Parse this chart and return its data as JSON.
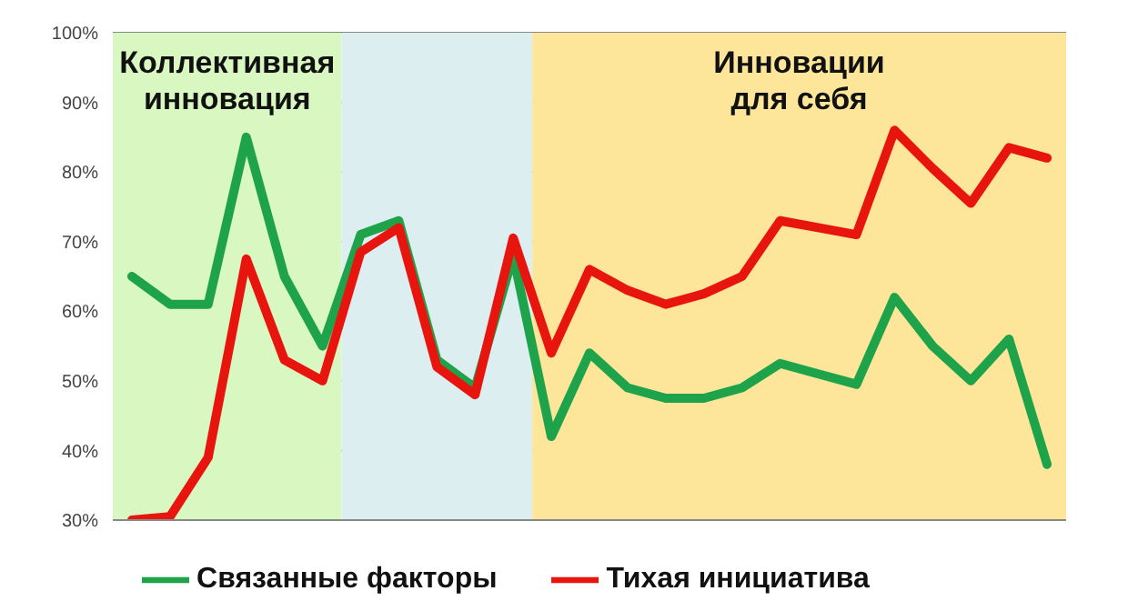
{
  "chart_data": {
    "type": "line",
    "categories": [
      null,
      null,
      null,
      null,
      null,
      null,
      null,
      null,
      null,
      null,
      null,
      null,
      null,
      null,
      null,
      null,
      null,
      null,
      null,
      null,
      null,
      null,
      null,
      null,
      null
    ],
    "ylim": [
      30,
      100
    ],
    "yticks": [
      {
        "value": 30,
        "label": "30%"
      },
      {
        "value": 40,
        "label": "40%"
      },
      {
        "value": 50,
        "label": "50%"
      },
      {
        "value": 60,
        "label": "60%"
      },
      {
        "value": 70,
        "label": "70%"
      },
      {
        "value": 80,
        "label": "80%"
      },
      {
        "value": 90,
        "label": "90%"
      },
      {
        "value": 100,
        "label": "100%"
      }
    ],
    "grid": "y",
    "legend": "bottom",
    "marker": "none",
    "line_style": "solid",
    "series": [
      {
        "name": "Связанные факторы",
        "color": "#1fa34a",
        "values": [
          65,
          61,
          61,
          85,
          65,
          55,
          71,
          73,
          53,
          49,
          68,
          42,
          54,
          49,
          47.5,
          47.5,
          49,
          52.5,
          51,
          49.5,
          62,
          55,
          50,
          56,
          38
        ]
      },
      {
        "name": "Тихая инициатива",
        "color": "#e8140e",
        "values": [
          30,
          30.5,
          39,
          67.5,
          53,
          50,
          68.5,
          72,
          52,
          48,
          70.5,
          54,
          66,
          63,
          61,
          62.5,
          65,
          73,
          72,
          71,
          86,
          80.5,
          75.5,
          83.5,
          82
        ]
      }
    ],
    "annotations": [
      "Коллективная инновация",
      "Инновации для себя"
    ]
  }
}
